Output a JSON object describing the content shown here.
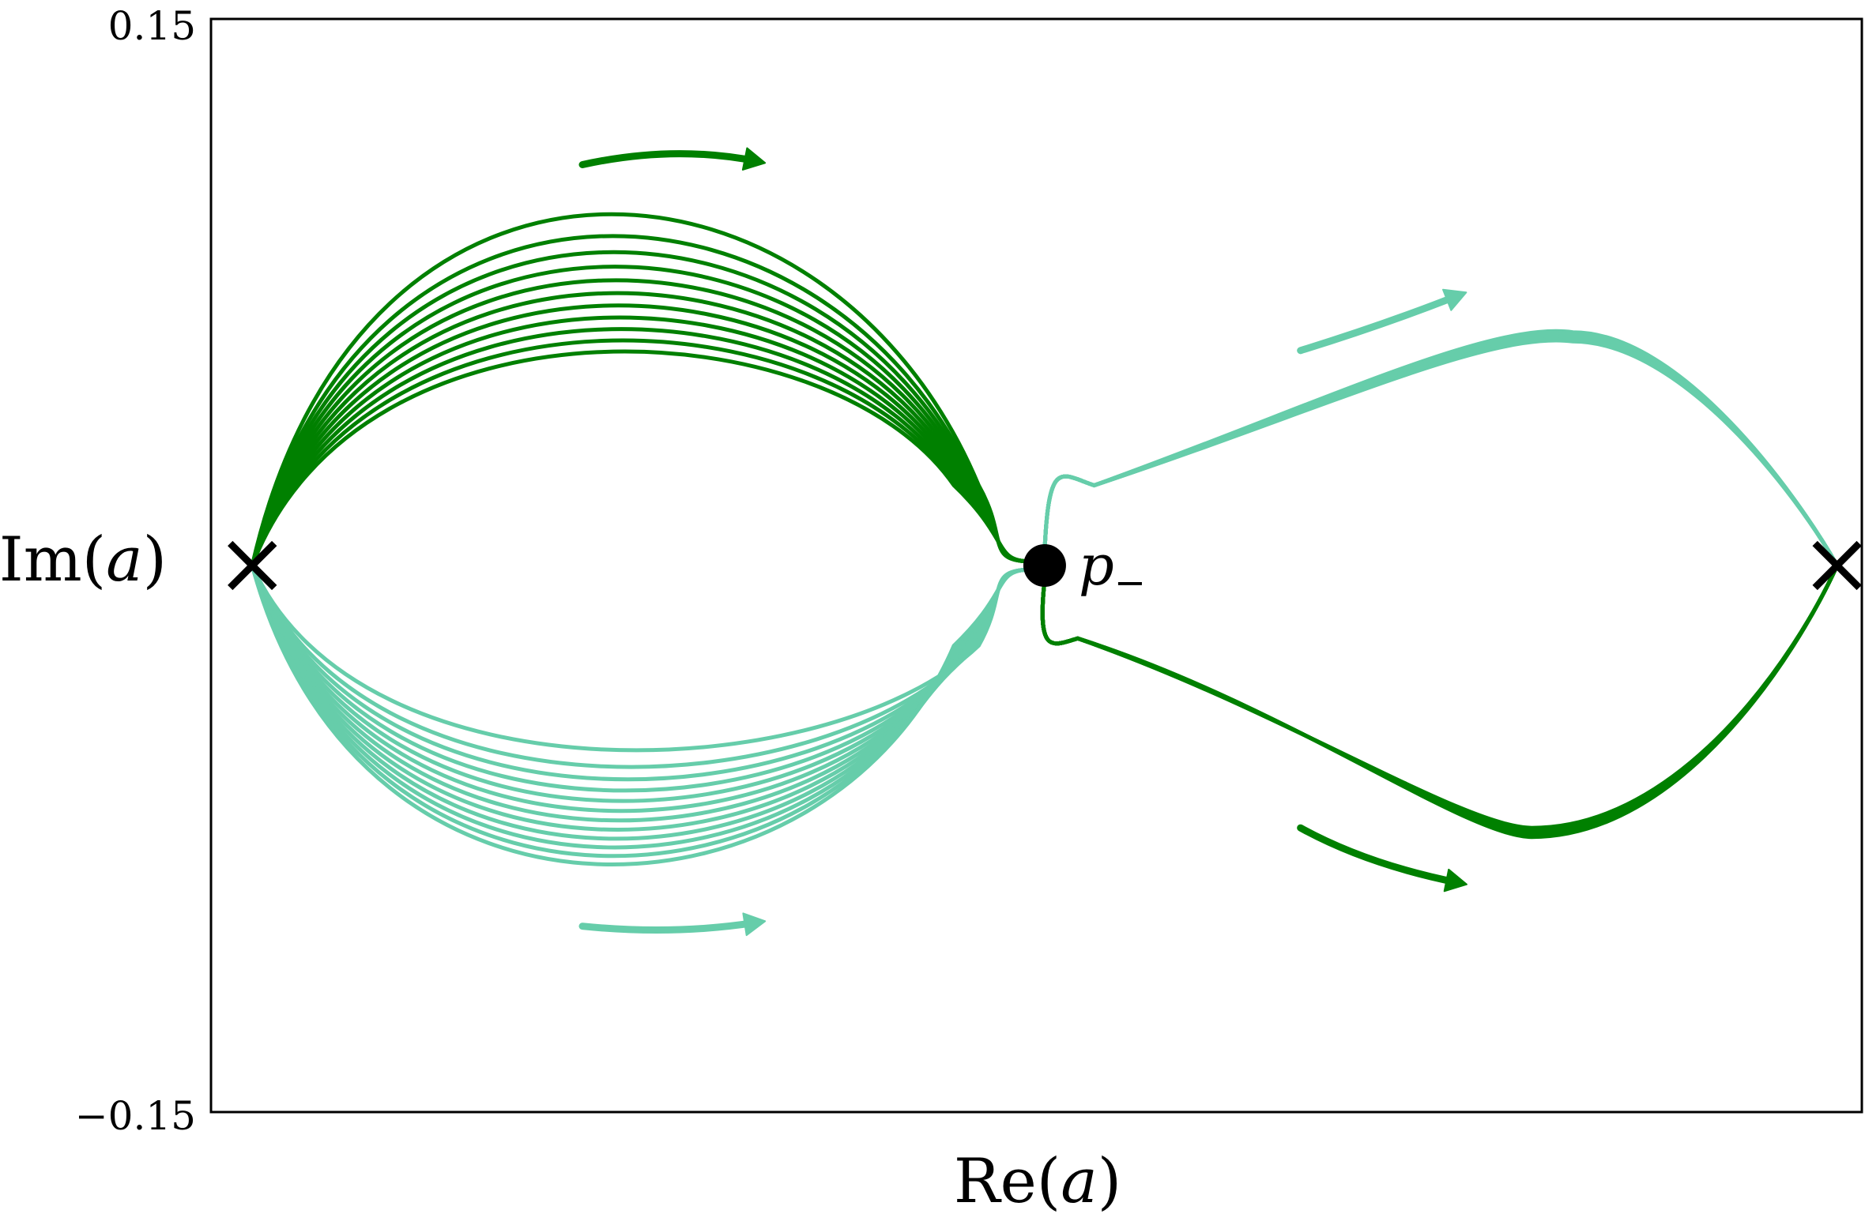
{
  "chart_data": {
    "type": "line",
    "title": "",
    "xlabel_prefix": "Re(",
    "xlabel_var": "a",
    "xlabel_suffix": ")",
    "ylabel_prefix": "Im(",
    "ylabel_var": "a",
    "ylabel_suffix": ")",
    "xlim": [
      -1,
      1
    ],
    "ylim": [
      -0.15,
      0.15
    ],
    "yticks": [
      {
        "value": 0.15,
        "label": "0.15"
      },
      {
        "value": -0.15,
        "label": "−0.15"
      }
    ],
    "grid": false,
    "legend": "none",
    "markers": [
      {
        "kind": "cross",
        "x": -0.95,
        "y": 0.0
      },
      {
        "kind": "cross",
        "x": 0.97,
        "y": 0.0
      },
      {
        "kind": "dot",
        "x": 0.01,
        "y": 0.0,
        "label": "p",
        "sub": "−"
      }
    ],
    "series": [
      {
        "color": "#008000",
        "group": "upper-left",
        "count": 11,
        "peak_start": 0.104,
        "peak_end": 0.062
      },
      {
        "color": "#66cdaa",
        "group": "lower-left",
        "count": 12,
        "peak_start": -0.053,
        "peak_end": -0.088
      },
      {
        "color": "#66cdaa",
        "group": "upper-right",
        "count": 10,
        "peak": 0.064
      },
      {
        "color": "#008000",
        "group": "lower-right",
        "count": 10,
        "peak": -0.072
      }
    ],
    "arrows": [
      {
        "color": "#008000",
        "direction": "right",
        "region": "upper-left"
      },
      {
        "color": "#66cdaa",
        "direction": "right",
        "region": "lower-left"
      },
      {
        "color": "#66cdaa",
        "direction": "right",
        "region": "upper-right"
      },
      {
        "color": "#008000",
        "direction": "right",
        "region": "lower-right"
      }
    ]
  },
  "colors": {
    "dark_green": "#008000",
    "light_green": "#66cdaa",
    "axis": "#000000"
  }
}
